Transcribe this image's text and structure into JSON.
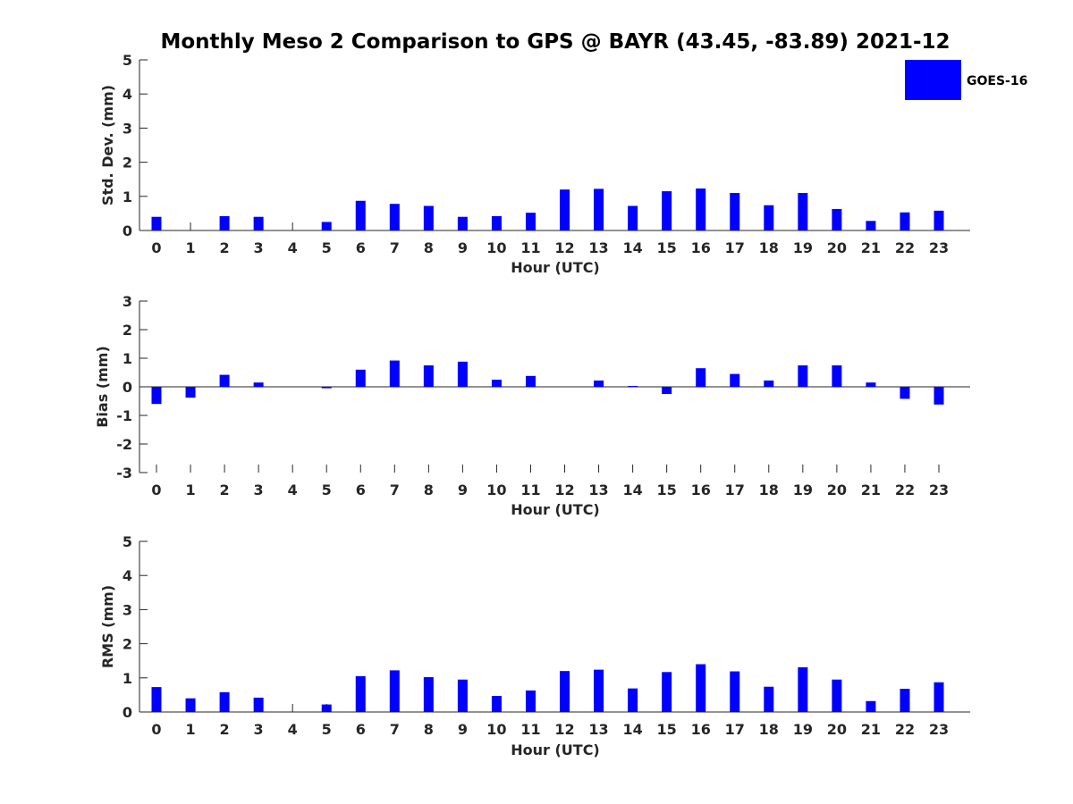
{
  "title": "Monthly Meso 2 Comparison to GPS @ BAYR (43.45, -83.89) 2021-12",
  "legend": {
    "label": "GOES-16",
    "color": "#0000ff"
  },
  "chart_data": [
    {
      "type": "bar",
      "panel": "std",
      "title": "Monthly Meso 2 Comparison to GPS @ BAYR (43.45, -83.89) 2021-12",
      "xlabel": "Hour (UTC)",
      "ylabel": "Std. Dev. (mm)",
      "ylim": [
        0,
        5
      ],
      "yticks": [
        0,
        1,
        2,
        3,
        4,
        5
      ],
      "categories": [
        "0",
        "1",
        "2",
        "3",
        "4",
        "5",
        "6",
        "7",
        "8",
        "9",
        "10",
        "11",
        "12",
        "13",
        "14",
        "15",
        "16",
        "17",
        "18",
        "19",
        "20",
        "21",
        "22",
        "23"
      ],
      "series": [
        {
          "name": "GOES-16",
          "values": [
            0.4,
            0.0,
            0.42,
            0.4,
            0.0,
            0.25,
            0.87,
            0.78,
            0.72,
            0.4,
            0.42,
            0.52,
            1.2,
            1.22,
            0.72,
            1.15,
            1.23,
            1.1,
            0.74,
            1.1,
            0.63,
            0.28,
            0.53,
            0.58
          ]
        }
      ]
    },
    {
      "type": "bar",
      "panel": "bias",
      "xlabel": "Hour (UTC)",
      "ylabel": "Bias (mm)",
      "ylim": [
        -3,
        3
      ],
      "yticks": [
        -3,
        -2,
        -1,
        0,
        1,
        2,
        3
      ],
      "categories": [
        "0",
        "1",
        "2",
        "3",
        "4",
        "5",
        "6",
        "7",
        "8",
        "9",
        "10",
        "11",
        "12",
        "13",
        "14",
        "15",
        "16",
        "17",
        "18",
        "19",
        "20",
        "21",
        "22",
        "23"
      ],
      "series": [
        {
          "name": "GOES-16",
          "values": [
            -0.6,
            -0.38,
            0.42,
            0.15,
            0.0,
            -0.05,
            0.6,
            0.92,
            0.75,
            0.88,
            0.25,
            0.38,
            0.0,
            0.22,
            0.03,
            -0.25,
            0.65,
            0.45,
            0.22,
            0.75,
            0.75,
            0.15,
            -0.42,
            -0.62
          ]
        }
      ]
    },
    {
      "type": "bar",
      "panel": "rms",
      "xlabel": "Hour (UTC)",
      "ylabel": "RMS (mm)",
      "ylim": [
        0,
        5
      ],
      "yticks": [
        0,
        1,
        2,
        3,
        4,
        5
      ],
      "categories": [
        "0",
        "1",
        "2",
        "3",
        "4",
        "5",
        "6",
        "7",
        "8",
        "9",
        "10",
        "11",
        "12",
        "13",
        "14",
        "15",
        "16",
        "17",
        "18",
        "19",
        "20",
        "21",
        "22",
        "23"
      ],
      "series": [
        {
          "name": "GOES-16",
          "values": [
            0.73,
            0.4,
            0.58,
            0.42,
            0.0,
            0.22,
            1.05,
            1.22,
            1.02,
            0.95,
            0.47,
            0.63,
            1.2,
            1.24,
            0.69,
            1.17,
            1.4,
            1.19,
            0.74,
            1.31,
            0.95,
            0.32,
            0.68,
            0.87
          ]
        }
      ]
    }
  ]
}
